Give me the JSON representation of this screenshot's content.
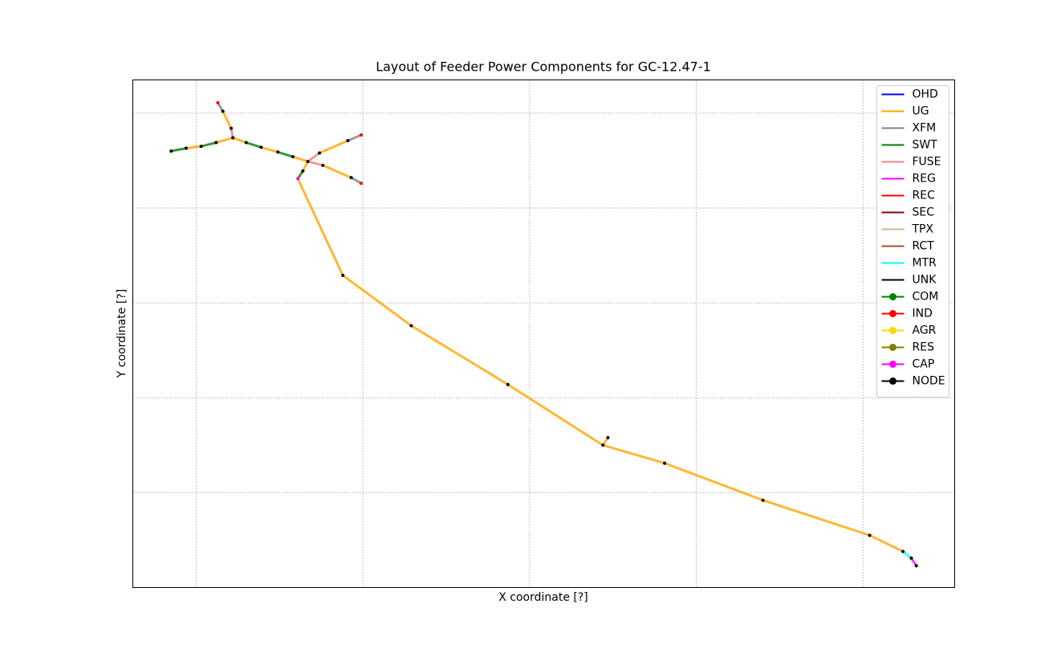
{
  "chart_data": {
    "type": "network",
    "title": "Layout of Feeder Power Components for GC-12.47-1",
    "x_label": "X coordinate [?]",
    "y_label": "Y coordinate [?]",
    "xlim": [
      0.62,
      5.55
    ],
    "ylim": [
      0,
      5.35
    ],
    "xticks": [
      1,
      2,
      3,
      4,
      5
    ],
    "yticks": [
      1,
      2,
      3,
      4,
      5
    ],
    "grid": true,
    "legend": "upper right",
    "series": [
      {
        "name": "OHD",
        "color": "#0000ff",
        "x": [],
        "y": []
      },
      {
        "name": "UG",
        "color": "#ffa500",
        "x": [
          0.94,
          1.03,
          null,
          1.12,
          1.22,
          null,
          1.21,
          1.16,
          null,
          1.22,
          1.3,
          null,
          1.39,
          1.49,
          null,
          1.58,
          1.67,
          null,
          1.74,
          1.91,
          null,
          1.76,
          1.93,
          null,
          1.67,
          1.64,
          null,
          1.61,
          1.88,
          2.29,
          2.87,
          3.44,
          3.81,
          4.4,
          5.04,
          5.24,
          null,
          3.44,
          3.47
        ],
        "y": [
          4.63,
          4.65,
          null,
          4.69,
          4.74,
          null,
          4.84,
          5.02,
          null,
          4.74,
          4.69,
          null,
          4.64,
          4.59,
          null,
          4.54,
          4.49,
          null,
          4.58,
          4.71,
          null,
          4.45,
          4.32,
          null,
          4.49,
          4.39,
          null,
          4.31,
          3.29,
          2.76,
          2.14,
          1.5,
          1.31,
          0.92,
          0.55,
          0.38,
          null,
          1.5,
          1.58
        ]
      },
      {
        "name": "XFM",
        "color": "#808080",
        "x": [
          1.16,
          1.13,
          null,
          1.91,
          1.99,
          null,
          1.93,
          1.99
        ],
        "y": [
          5.02,
          5.11,
          null,
          4.71,
          4.77,
          null,
          4.32,
          4.26
        ]
      },
      {
        "name": "SWT",
        "color": "#008000",
        "x": [
          0.85,
          0.94,
          null,
          1.03,
          1.12,
          null,
          1.3,
          1.39,
          null,
          1.49,
          1.58,
          null,
          1.64,
          1.61
        ],
        "y": [
          4.6,
          4.63,
          null,
          4.65,
          4.69,
          null,
          4.69,
          4.64,
          null,
          4.59,
          4.54,
          null,
          4.39,
          4.31
        ]
      },
      {
        "name": "FUSE",
        "color": "#f08080",
        "x": [
          1.22,
          1.21,
          null,
          1.67,
          1.74,
          null,
          1.67,
          1.76
        ],
        "y": [
          4.74,
          4.84,
          null,
          4.49,
          4.58,
          null,
          4.49,
          4.45
        ]
      },
      {
        "name": "REG",
        "color": "#ff00ff",
        "x": [
          5.29,
          5.32
        ],
        "y": [
          0.31,
          0.23
        ]
      },
      {
        "name": "REC",
        "color": "#ff0000",
        "x": [],
        "y": []
      },
      {
        "name": "SEC",
        "color": "#8b0000",
        "x": [],
        "y": []
      },
      {
        "name": "TPX",
        "color": "#d2b48c",
        "x": [],
        "y": []
      },
      {
        "name": "RCT",
        "color": "#a0522d",
        "x": [],
        "y": []
      },
      {
        "name": "MTR",
        "color": "#00ffff",
        "x": [
          5.24,
          5.29
        ],
        "y": [
          0.38,
          0.31
        ]
      },
      {
        "name": "UNK",
        "color": "#000000",
        "x": [],
        "y": []
      },
      {
        "name": "COM",
        "color": "#008000",
        "marker": "o",
        "x": [],
        "y": []
      },
      {
        "name": "IND",
        "color": "#ff0000",
        "marker": "o",
        "x": [
          1.13,
          1.99,
          1.99
        ],
        "y": [
          5.11,
          4.77,
          4.26
        ]
      },
      {
        "name": "AGR",
        "color": "#ffd700",
        "marker": "o",
        "x": [],
        "y": []
      },
      {
        "name": "RES",
        "color": "#808000",
        "marker": "o",
        "x": [],
        "y": []
      },
      {
        "name": "CAP",
        "color": "#ff00ff",
        "marker": "o",
        "x": [
          1.61
        ],
        "y": [
          4.31
        ]
      },
      {
        "name": "NODE",
        "color": "#000000",
        "marker": "o",
        "x": [
          0.85,
          0.94,
          1.03,
          1.12,
          1.22,
          1.21,
          1.16,
          1.3,
          1.39,
          1.49,
          1.58,
          1.67,
          1.74,
          1.91,
          1.76,
          1.93,
          1.64,
          1.88,
          2.29,
          2.87,
          3.44,
          3.47,
          3.81,
          4.4,
          5.04,
          5.24,
          5.29,
          5.32
        ],
        "y": [
          4.6,
          4.63,
          4.65,
          4.69,
          4.74,
          4.84,
          5.02,
          4.69,
          4.64,
          4.59,
          4.54,
          4.49,
          4.58,
          4.71,
          4.45,
          4.32,
          4.39,
          3.29,
          2.76,
          2.14,
          1.5,
          1.58,
          1.31,
          0.92,
          0.55,
          0.38,
          0.31,
          0.23
        ]
      }
    ]
  }
}
